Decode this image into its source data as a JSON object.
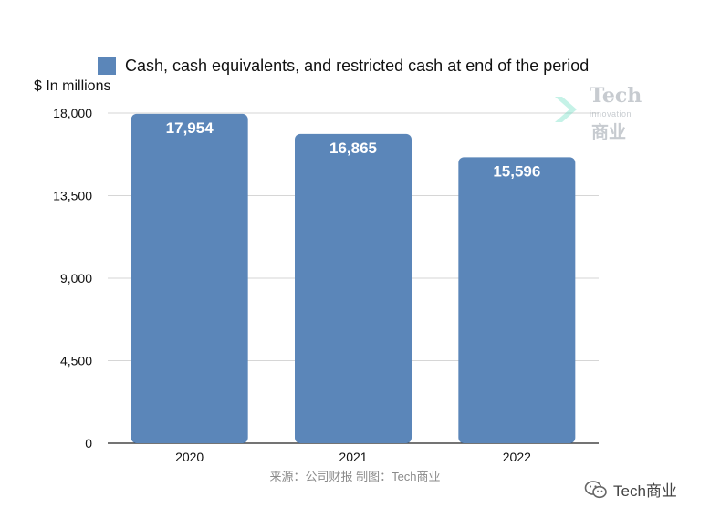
{
  "chart_data": {
    "type": "bar",
    "categories": [
      "2020",
      "2021",
      "2022"
    ],
    "series": [
      {
        "name": "Cash, cash equivalents, and restricted cash at end of the period",
        "values": [
          17954,
          16865,
          15596
        ]
      }
    ],
    "data_labels": [
      "17,954",
      "16,865",
      "15,596"
    ],
    "ylabel": "$ In millions",
    "yticks": [
      "0",
      "4,500",
      "9,000",
      "13,500",
      "18,000"
    ],
    "ytick_values": [
      0,
      4500,
      9000,
      13500,
      18000
    ],
    "ylim": [
      0,
      18000
    ],
    "grid": true,
    "legend_position": "top",
    "bar_color": "#5b86b9"
  },
  "source_note": "来源：公司财报 制图：Tech商业",
  "watermark": {
    "title": "Tech",
    "subtitle": "innovation",
    "cn": "商业"
  },
  "brand": {
    "label": "Tech商业",
    "icon": "wechat-icon"
  }
}
